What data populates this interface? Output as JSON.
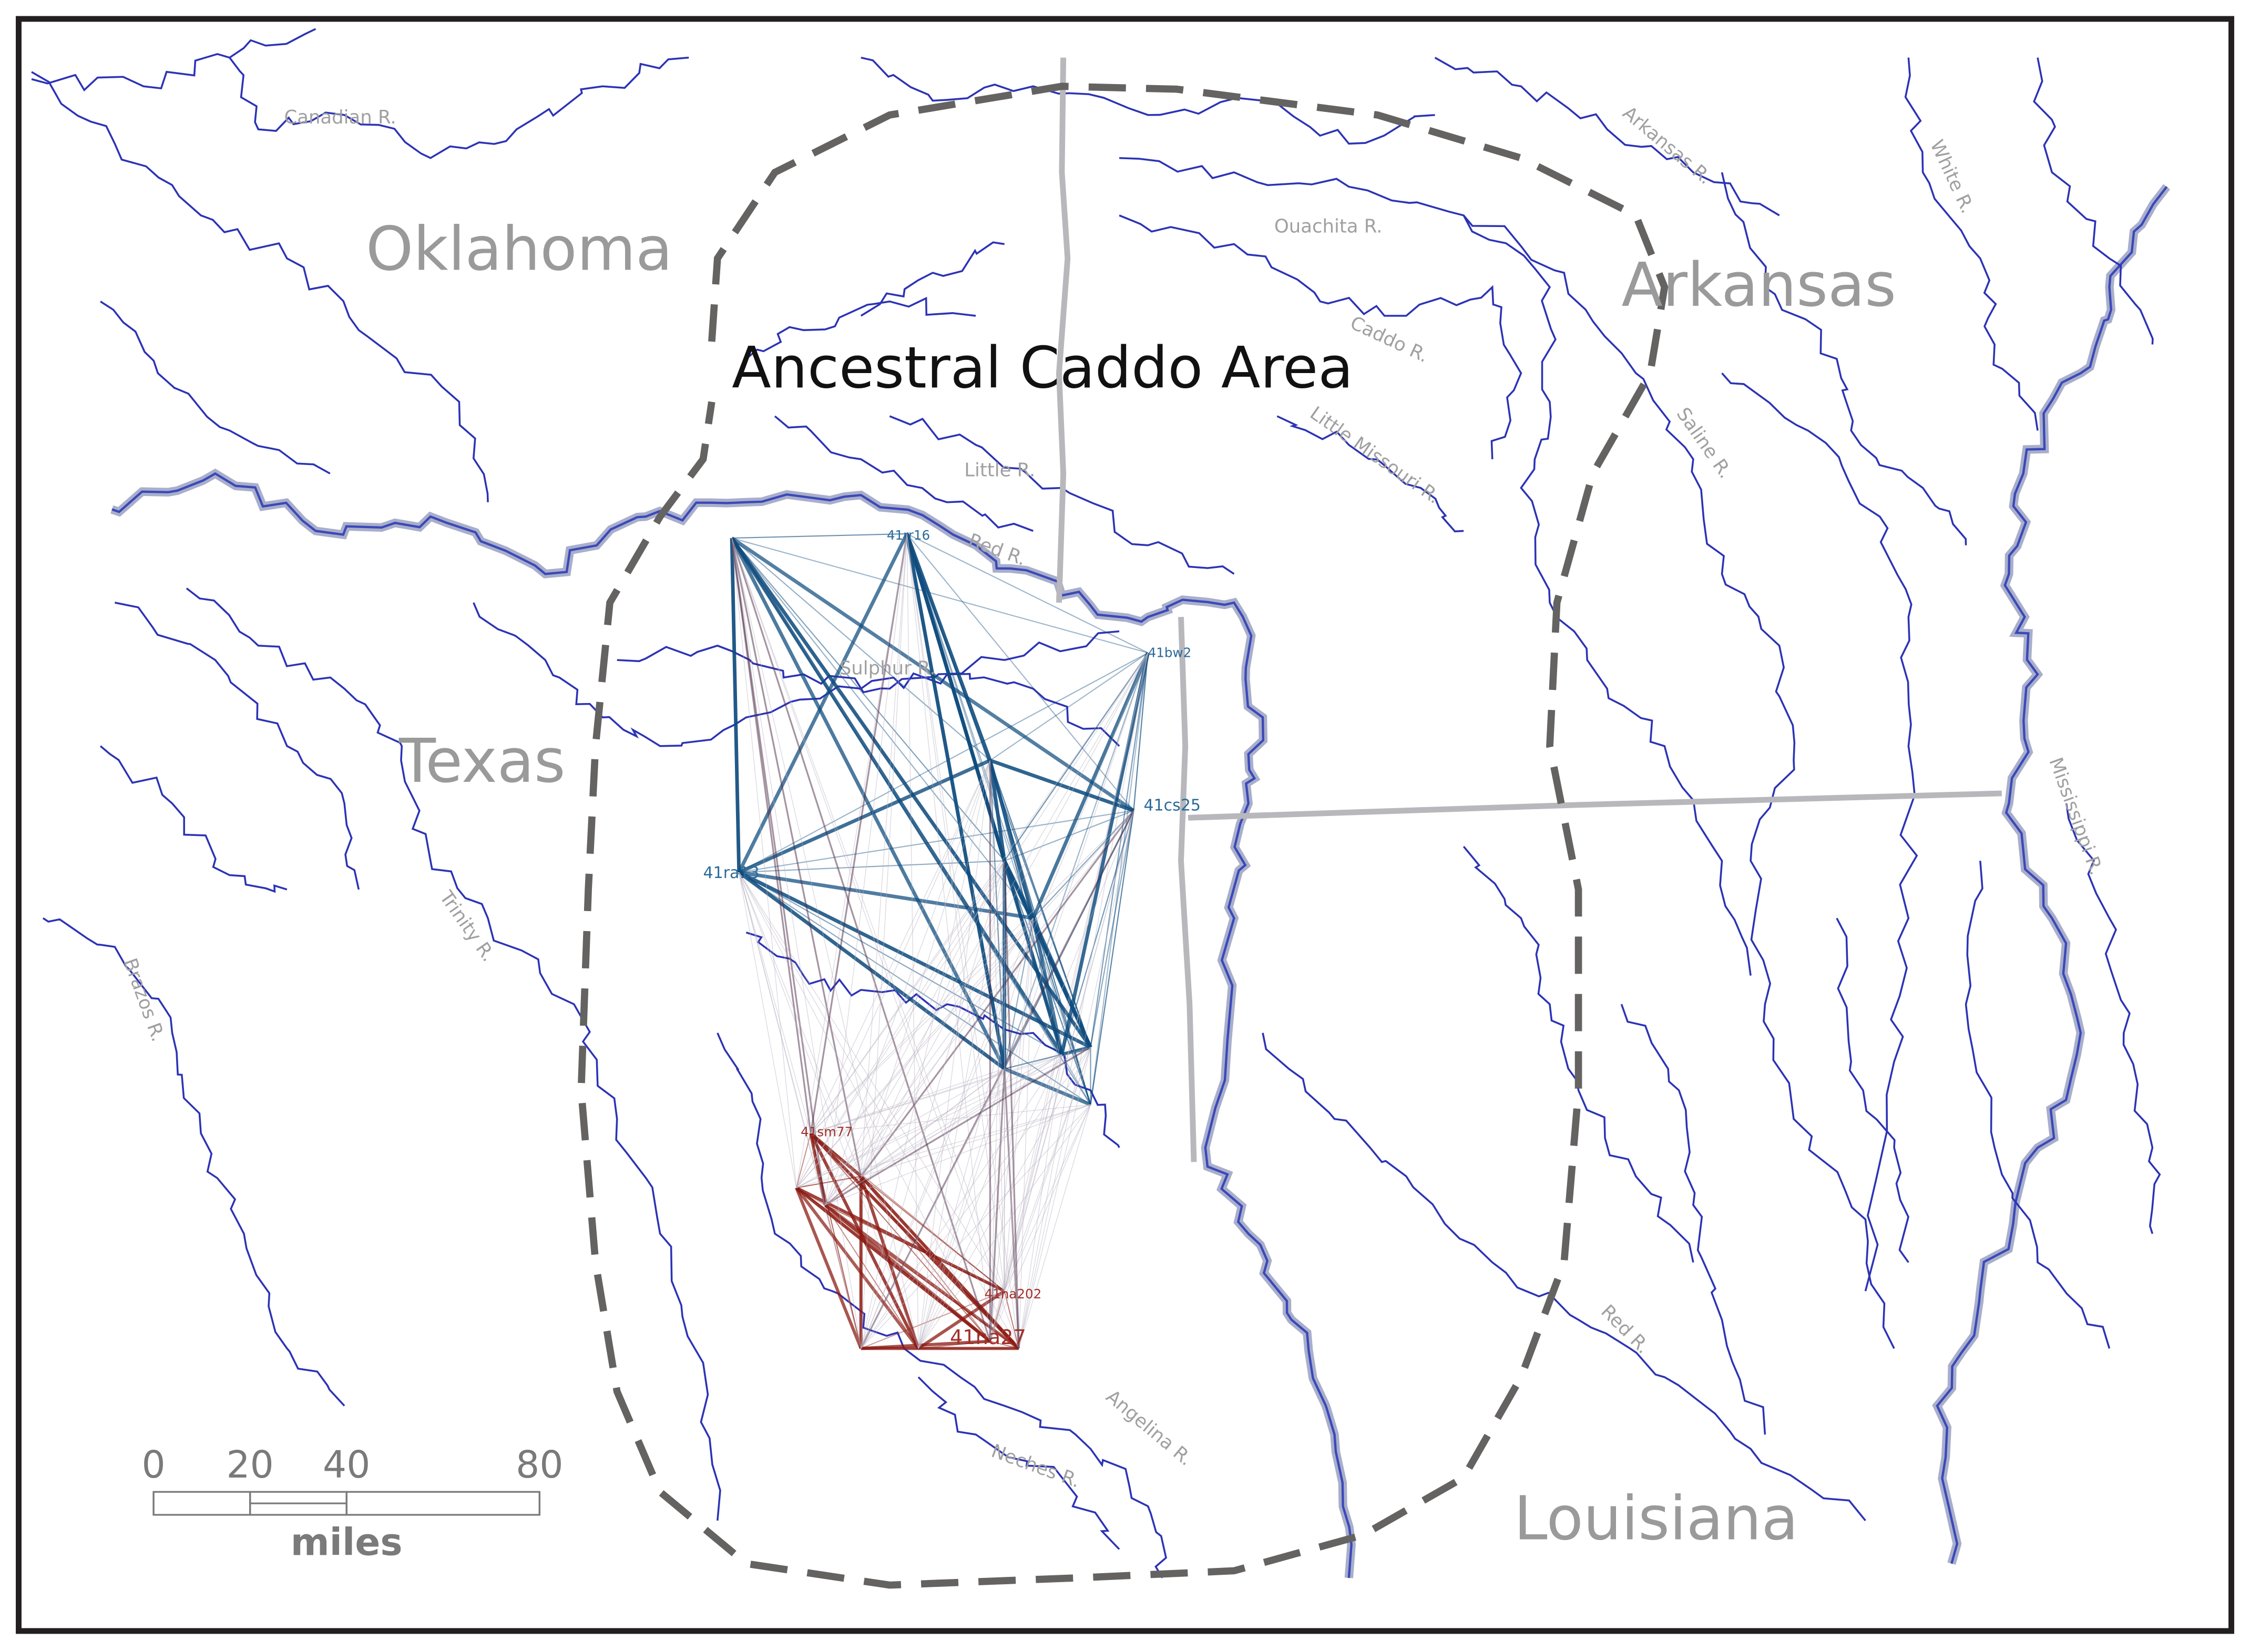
{
  "title": "Ancestral Caddo Area",
  "states": [
    "Oklahoma",
    "Arkansas",
    "Texas",
    "Louisiana"
  ],
  "rivers": [
    "Canadian R.",
    "Arkansas R.",
    "White R.",
    "Ouachita R.",
    "Caddo R.",
    "Little Missouri R.",
    "Saline R.",
    "Little R.",
    "Red R.",
    "Sulphur R.",
    "Mississippi R.",
    "Trinity R.",
    "Brazos R.",
    "Red R.",
    "Angelina R.",
    "Neches R."
  ],
  "sites": [
    "41rr16",
    "41bw2",
    "41cs25",
    "41ra13",
    "41sm77",
    "41na202",
    "41na27"
  ],
  "scale": {
    "ticks": [
      0,
      20,
      40,
      80
    ],
    "unit": "miles"
  }
}
